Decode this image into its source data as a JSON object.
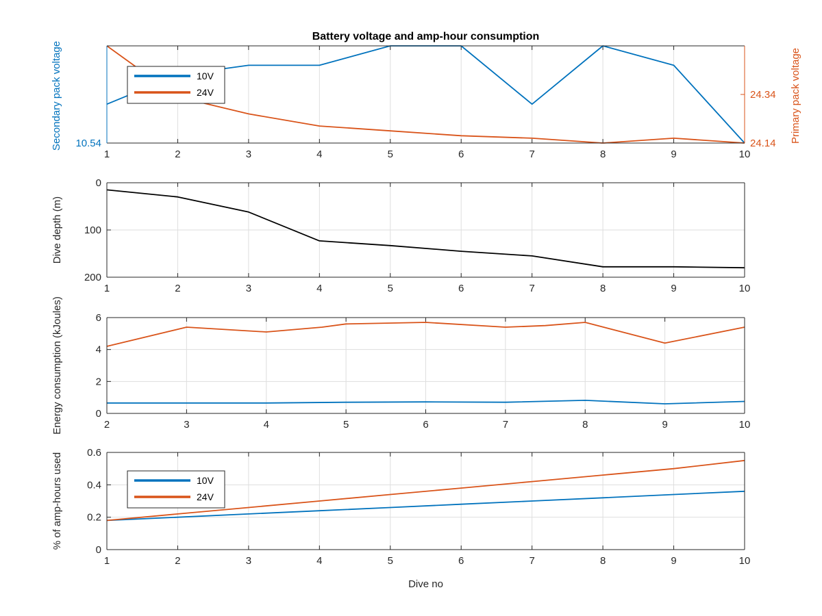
{
  "chart_data": [
    {
      "type": "line",
      "id": "voltage",
      "title": "Battery voltage and amp-hour consumption",
      "xlabel": "",
      "ylabel": "Secondary pack voltage",
      "ylabel_right": "Primary pack voltage",
      "xlim": [
        1,
        10
      ],
      "xticks": [
        "1",
        "2",
        "3",
        "4",
        "5",
        "6",
        "7",
        "8",
        "9",
        "10"
      ],
      "ylim": [
        10.54,
        10.58
      ],
      "yticks_left": [
        {
          "value": 10.54,
          "label": "10.54"
        }
      ],
      "ylim_right": [
        24.14,
        24.54
      ],
      "yticks_right": [
        {
          "value": 24.14,
          "label": "24.14"
        },
        {
          "value": 24.34,
          "label": "24.34"
        }
      ],
      "grid": true,
      "legend": "top-left",
      "series": [
        {
          "name": "10V",
          "axis": "left",
          "color": "#0072BD",
          "x": [
            1,
            2,
            3,
            4,
            5,
            6,
            7,
            8,
            9,
            10
          ],
          "values": [
            10.556,
            10.568,
            10.572,
            10.572,
            10.58,
            10.58,
            10.556,
            10.58,
            10.572,
            10.54
          ]
        },
        {
          "name": "24V",
          "axis": "right",
          "color": "#D95319",
          "x": [
            1,
            2,
            3,
            4,
            5,
            6,
            7,
            8,
            9,
            10
          ],
          "values": [
            24.54,
            24.33,
            24.26,
            24.21,
            24.19,
            24.17,
            24.16,
            24.14,
            24.16,
            24.14
          ]
        }
      ]
    },
    {
      "type": "line",
      "id": "depth",
      "title": "",
      "xlabel": "",
      "ylabel": "Dive depth (m)",
      "xlim": [
        1,
        10
      ],
      "xticks": [
        "1",
        "2",
        "3",
        "4",
        "5",
        "6",
        "7",
        "8",
        "9",
        "10"
      ],
      "ylim": [
        0,
        200
      ],
      "y_reversed": true,
      "yticks": [
        {
          "value": 0,
          "label": "0"
        },
        {
          "value": 100,
          "label": "100"
        },
        {
          "value": 200,
          "label": "200"
        }
      ],
      "grid": true,
      "series": [
        {
          "name": "",
          "color": "#000000",
          "x": [
            1,
            2,
            3,
            4,
            5,
            6,
            7,
            8,
            9,
            10
          ],
          "values": [
            15,
            30,
            62,
            123,
            133,
            145,
            155,
            178,
            178,
            180
          ]
        }
      ]
    },
    {
      "type": "line",
      "id": "energy",
      "title": "",
      "xlabel": "",
      "ylabel": "Energy consumption (kJoules)",
      "xlim": [
        2,
        10
      ],
      "xticks": [
        "2",
        "3",
        "4",
        "5",
        "6",
        "7",
        "8",
        "9",
        "10"
      ],
      "ylim": [
        0,
        6
      ],
      "yticks": [
        {
          "value": 0,
          "label": "0"
        },
        {
          "value": 2,
          "label": "2"
        },
        {
          "value": 4,
          "label": "4"
        },
        {
          "value": 6,
          "label": "6"
        }
      ],
      "grid": true,
      "series": [
        {
          "name": "",
          "color": "#D95319",
          "x": [
            2,
            3,
            4,
            4.7,
            5,
            6,
            7,
            7.5,
            8,
            9,
            10
          ],
          "values": [
            4.2,
            5.4,
            5.1,
            5.4,
            5.6,
            5.7,
            5.4,
            5.5,
            5.7,
            4.4,
            5.4
          ]
        },
        {
          "name": "",
          "color": "#0072BD",
          "x": [
            2,
            3,
            4,
            5,
            6,
            7,
            8,
            9,
            10
          ],
          "values": [
            0.65,
            0.65,
            0.65,
            0.7,
            0.72,
            0.7,
            0.82,
            0.6,
            0.75
          ]
        }
      ]
    },
    {
      "type": "line",
      "id": "amphours",
      "title": "",
      "xlabel": "Dive no",
      "ylabel": "% of amp-hours used",
      "xlim": [
        1,
        10
      ],
      "xticks": [
        "1",
        "2",
        "3",
        "4",
        "5",
        "6",
        "7",
        "8",
        "9",
        "10"
      ],
      "ylim": [
        0,
        0.6
      ],
      "yticks": [
        {
          "value": 0,
          "label": "0"
        },
        {
          "value": 0.2,
          "label": "0.2"
        },
        {
          "value": 0.4,
          "label": "0.4"
        },
        {
          "value": 0.6,
          "label": "0.6"
        }
      ],
      "grid": true,
      "legend": "top-left",
      "series": [
        {
          "name": "10V",
          "color": "#0072BD",
          "x": [
            1,
            2,
            3,
            4,
            5,
            6,
            7,
            8,
            9,
            10
          ],
          "values": [
            0.18,
            0.2,
            0.22,
            0.24,
            0.26,
            0.28,
            0.3,
            0.32,
            0.34,
            0.36
          ]
        },
        {
          "name": "24V",
          "color": "#D95319",
          "x": [
            1,
            2,
            3,
            4,
            5,
            6,
            7,
            8,
            9,
            10
          ],
          "values": [
            0.18,
            0.22,
            0.26,
            0.3,
            0.34,
            0.38,
            0.42,
            0.46,
            0.5,
            0.55
          ]
        }
      ]
    }
  ]
}
